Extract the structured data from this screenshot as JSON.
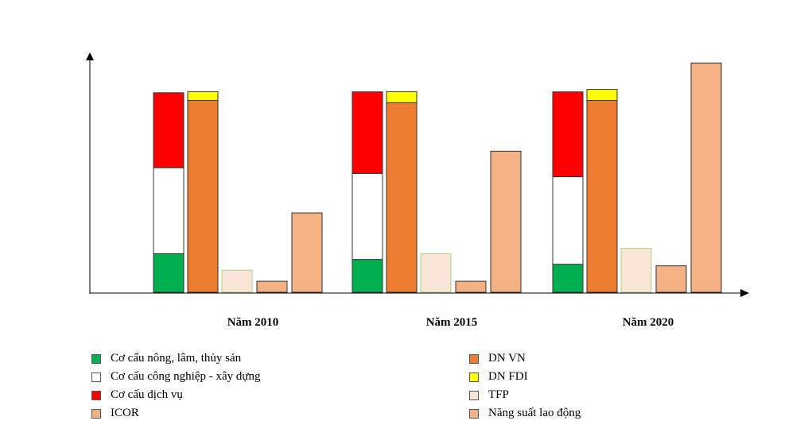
{
  "chart_data": {
    "type": "bar",
    "title": "",
    "xlabel": "",
    "ylabel": "",
    "ylim": [
      0,
      100
    ],
    "categories": [
      "Năm 2010",
      "Năm 2015",
      "Năm 2020"
    ],
    "structure_stack": {
      "name": "Cơ cấu",
      "layers": [
        {
          "key": "agri",
          "name": "Cơ cấu nông, lâm, thủy sản",
          "color": "#00b050",
          "values": [
            17.5,
            14.9,
            12.7
          ]
        },
        {
          "key": "industry",
          "name": "Cơ cấu công nghiệp - xây dựng",
          "color": "#ffffff",
          "values": [
            39.0,
            39.0,
            39.7
          ]
        },
        {
          "key": "services",
          "name": "Cơ cấu dịch vụ",
          "color": "#ff0000",
          "values": [
            34.0,
            37.0,
            38.5
          ]
        }
      ]
    },
    "enterprise_stack": {
      "name": "Doanh nghiệp",
      "layers": [
        {
          "key": "dn_vn",
          "name": "DN VN",
          "color": "#ed7d31",
          "values": [
            87.0,
            86.0,
            87.0
          ]
        },
        {
          "key": "dn_fdi",
          "name": "DN FDI",
          "color": "#ffff00",
          "values": [
            4.0,
            5.0,
            5.0
          ]
        }
      ]
    },
    "series": [
      {
        "key": "tfp",
        "name": "TFP",
        "color": "#fbe5d6",
        "values": [
          10.0,
          17.5,
          20.0
        ]
      },
      {
        "key": "icor",
        "name": "ICOR",
        "color": "#f4b183",
        "values": [
          5.0,
          5.0,
          12.0
        ]
      },
      {
        "key": "labor",
        "name": "Năng suất lao động",
        "color": "#f4b183",
        "values": [
          36.0,
          64.0,
          104.0
        ]
      }
    ],
    "legend": {
      "position": "bottom",
      "left": [
        {
          "name": "Cơ cấu nông, lâm, thủy sản",
          "color": "#00b050"
        },
        {
          "name": "Cơ cấu công nghiệp - xây dựng",
          "color": "#ffffff"
        },
        {
          "name": "Cơ cấu dịch vụ",
          "color": "#ff0000"
        },
        {
          "name": "ICOR",
          "color": "#f4b183"
        }
      ],
      "right": [
        {
          "name": "DN VN",
          "color": "#ed7d31"
        },
        {
          "name": "DN FDI",
          "color": "#ffff00"
        },
        {
          "name": "TFP",
          "color": "#fbe5d6"
        },
        {
          "name": "Năng suất lao động",
          "color": "#f4b183"
        }
      ]
    }
  }
}
